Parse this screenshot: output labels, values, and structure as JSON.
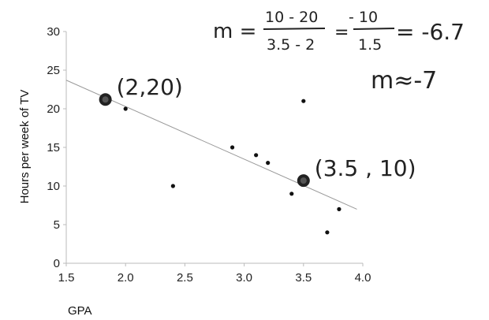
{
  "chart_data": {
    "type": "scatter",
    "xlabel": "GPA",
    "ylabel": "Hours per week of TV",
    "xlim": [
      1.5,
      4.0
    ],
    "ylim": [
      0,
      30
    ],
    "x_ticks": [
      "1.5",
      "2.0",
      "2.5",
      "3.0",
      "3.5",
      "4.0"
    ],
    "y_ticks": [
      "0",
      "5",
      "10",
      "15",
      "20",
      "25",
      "30"
    ],
    "points": [
      {
        "x": 2.0,
        "y": 20
      },
      {
        "x": 2.4,
        "y": 10
      },
      {
        "x": 2.9,
        "y": 15
      },
      {
        "x": 3.1,
        "y": 14
      },
      {
        "x": 3.2,
        "y": 13
      },
      {
        "x": 3.4,
        "y": 9
      },
      {
        "x": 3.5,
        "y": 21
      },
      {
        "x": 3.7,
        "y": 4
      },
      {
        "x": 3.8,
        "y": 7
      }
    ],
    "trend_line": {
      "x": [
        1.5,
        3.95
      ],
      "y": [
        23.7,
        7.0
      ]
    },
    "highlighted_points": [
      {
        "x": 1.83,
        "y": 21.2,
        "label": "(2,20)"
      },
      {
        "x": 3.5,
        "y": 10.7,
        "label": "(3.5 , 10)"
      }
    ],
    "annotations": {
      "slope_prefix": "m =",
      "frac1_num": "10 - 20",
      "frac1_den": "3.5 - 2",
      "eq2": "=",
      "frac2_num": "- 10",
      "frac2_den": "1.5",
      "result": "= -6.7",
      "approx": "m≈-7"
    },
    "grid": false
  }
}
